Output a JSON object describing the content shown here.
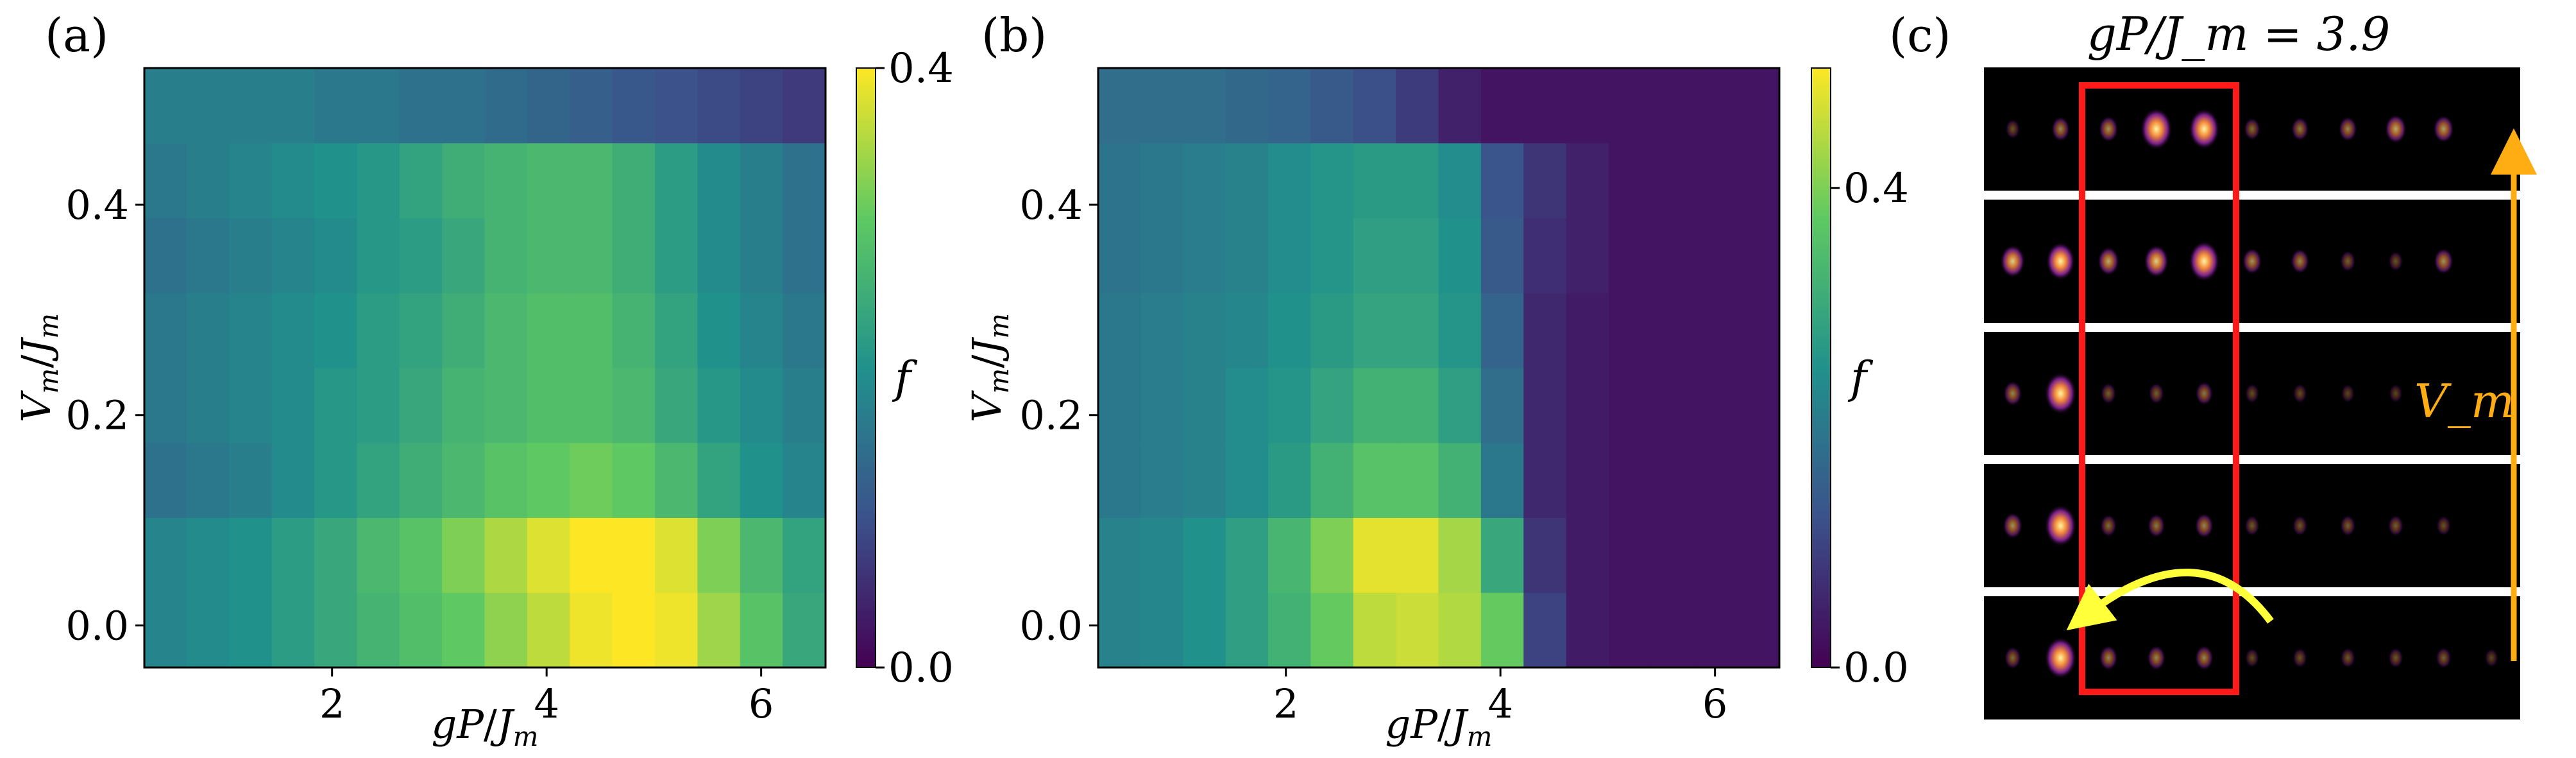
{
  "chart_data": [
    {
      "type": "heatmap",
      "panel_label": "(a)",
      "xlabel": "gP/J_m",
      "ylabel": "V_m/J_m",
      "xlim": [
        0.25,
        6.6
      ],
      "ylim": [
        -0.04,
        0.53
      ],
      "xticks": [
        "2",
        "4",
        "6"
      ],
      "yticks": [
        "0.0",
        "0.2",
        "0.4"
      ],
      "colorbar": {
        "label": "f",
        "min": 0.0,
        "max": 0.4,
        "ticks": [
          "0.0",
          "0.4"
        ]
      },
      "rows": [
        {
          "y": 0.0,
          "values": [
            0.18,
            0.19,
            0.2,
            0.22,
            0.24,
            0.26,
            0.28,
            0.3,
            0.33,
            0.36,
            0.39,
            0.41,
            0.39,
            0.34,
            0.29,
            0.24
          ]
        },
        {
          "y": 0.07,
          "values": [
            0.18,
            0.19,
            0.2,
            0.22,
            0.24,
            0.27,
            0.29,
            0.32,
            0.35,
            0.38,
            0.41,
            0.42,
            0.38,
            0.32,
            0.27,
            0.23
          ]
        },
        {
          "y": 0.14,
          "values": [
            0.15,
            0.16,
            0.17,
            0.19,
            0.21,
            0.23,
            0.25,
            0.27,
            0.29,
            0.3,
            0.31,
            0.3,
            0.27,
            0.23,
            0.2,
            0.18
          ]
        },
        {
          "y": 0.21,
          "values": [
            0.16,
            0.17,
            0.18,
            0.19,
            0.21,
            0.22,
            0.24,
            0.26,
            0.27,
            0.28,
            0.28,
            0.27,
            0.24,
            0.21,
            0.19,
            0.17
          ]
        },
        {
          "y": 0.28,
          "values": [
            0.16,
            0.17,
            0.18,
            0.19,
            0.2,
            0.22,
            0.23,
            0.25,
            0.27,
            0.28,
            0.28,
            0.26,
            0.23,
            0.2,
            0.18,
            0.16
          ]
        },
        {
          "y": 0.35,
          "values": [
            0.15,
            0.16,
            0.17,
            0.18,
            0.19,
            0.21,
            0.22,
            0.24,
            0.26,
            0.27,
            0.27,
            0.25,
            0.22,
            0.19,
            0.17,
            0.15
          ]
        },
        {
          "y": 0.42,
          "values": [
            0.16,
            0.17,
            0.18,
            0.19,
            0.2,
            0.21,
            0.23,
            0.25,
            0.26,
            0.27,
            0.27,
            0.25,
            0.22,
            0.19,
            0.17,
            0.15
          ]
        },
        {
          "y": 0.49,
          "values": [
            0.17,
            0.17,
            0.17,
            0.17,
            0.16,
            0.16,
            0.15,
            0.15,
            0.14,
            0.13,
            0.12,
            0.11,
            0.1,
            0.09,
            0.08,
            0.07
          ]
        }
      ]
    },
    {
      "type": "heatmap",
      "panel_label": "(b)",
      "xlabel": "gP/J_m",
      "ylabel": "V_m/J_m",
      "xlim": [
        0.25,
        6.6
      ],
      "ylim": [
        -0.04,
        0.53
      ],
      "xticks": [
        "2",
        "4",
        "6"
      ],
      "yticks": [
        "0.0",
        "0.2",
        "0.4"
      ],
      "colorbar": {
        "label": "f",
        "min": 0.0,
        "max": 0.5,
        "ticks": [
          "0.0",
          "0.4"
        ]
      },
      "rows": [
        {
          "y": 0.0,
          "values": [
            0.22,
            0.23,
            0.25,
            0.28,
            0.32,
            0.38,
            0.45,
            0.46,
            0.44,
            0.38,
            0.1,
            0.04,
            0.03,
            0.03,
            0.03,
            0.03
          ]
        },
        {
          "y": 0.07,
          "values": [
            0.22,
            0.23,
            0.25,
            0.28,
            0.33,
            0.4,
            0.48,
            0.48,
            0.43,
            0.3,
            0.08,
            0.04,
            0.03,
            0.03,
            0.03,
            0.03
          ]
        },
        {
          "y": 0.14,
          "values": [
            0.2,
            0.21,
            0.22,
            0.24,
            0.27,
            0.32,
            0.36,
            0.36,
            0.32,
            0.2,
            0.06,
            0.04,
            0.03,
            0.03,
            0.03,
            0.03
          ]
        },
        {
          "y": 0.21,
          "values": [
            0.2,
            0.21,
            0.22,
            0.24,
            0.26,
            0.29,
            0.32,
            0.32,
            0.28,
            0.18,
            0.06,
            0.04,
            0.03,
            0.03,
            0.03,
            0.03
          ]
        },
        {
          "y": 0.28,
          "values": [
            0.2,
            0.21,
            0.22,
            0.23,
            0.25,
            0.27,
            0.29,
            0.29,
            0.26,
            0.16,
            0.06,
            0.04,
            0.03,
            0.03,
            0.03,
            0.03
          ]
        },
        {
          "y": 0.35,
          "values": [
            0.19,
            0.2,
            0.21,
            0.22,
            0.24,
            0.26,
            0.28,
            0.28,
            0.25,
            0.14,
            0.07,
            0.05,
            0.03,
            0.03,
            0.03,
            0.03
          ]
        },
        {
          "y": 0.42,
          "values": [
            0.19,
            0.2,
            0.21,
            0.22,
            0.24,
            0.26,
            0.27,
            0.27,
            0.24,
            0.13,
            0.08,
            0.05,
            0.03,
            0.03,
            0.03,
            0.03
          ]
        },
        {
          "y": 0.49,
          "values": [
            0.18,
            0.18,
            0.18,
            0.17,
            0.16,
            0.14,
            0.12,
            0.09,
            0.05,
            0.03,
            0.03,
            0.03,
            0.03,
            0.03,
            0.03,
            0.03
          ]
        }
      ]
    }
  ],
  "panel_c": {
    "label": "(c)",
    "title": "gP/J_m = 3.9",
    "arrow_label": "V_m",
    "strips": [
      {
        "intensities": [
          0.1,
          0.3,
          0.35,
          0.95,
          0.9,
          0.2,
          0.25,
          0.3,
          0.45,
          0.4,
          0.0
        ]
      },
      {
        "intensities": [
          0.6,
          0.8,
          0.45,
          0.6,
          0.9,
          0.35,
          0.3,
          0.15,
          0.1,
          0.35,
          0.0
        ]
      },
      {
        "intensities": [
          0.3,
          0.95,
          0.15,
          0.15,
          0.25,
          0.08,
          0.08,
          0.05,
          0.05,
          0.0,
          0.0
        ]
      },
      {
        "intensities": [
          0.35,
          0.95,
          0.2,
          0.25,
          0.3,
          0.12,
          0.12,
          0.15,
          0.15,
          0.1,
          0.0
        ]
      },
      {
        "intensities": [
          0.2,
          0.95,
          0.3,
          0.3,
          0.3,
          0.08,
          0.1,
          0.12,
          0.12,
          0.15,
          0.05
        ]
      }
    ]
  }
}
